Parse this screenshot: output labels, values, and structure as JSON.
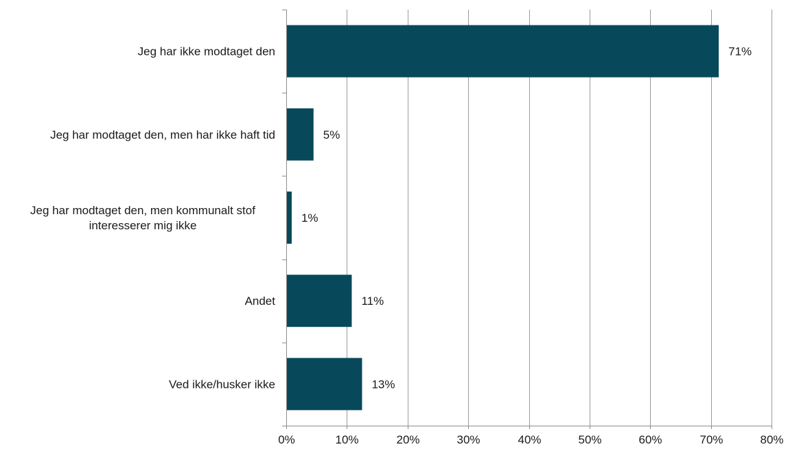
{
  "chart_data": {
    "type": "bar",
    "orientation": "horizontal",
    "categories": [
      [
        "Jeg har ikke modtaget den"
      ],
      [
        "Jeg har modtaget den, men har ikke haft tid"
      ],
      [
        "Jeg har modtaget den, men kommunalt stof",
        "interesserer mig ikke"
      ],
      [
        "Andet"
      ],
      [
        "Ved ikke/husker ikke"
      ]
    ],
    "values": [
      71.3,
      4.5,
      0.9,
      10.8,
      12.5
    ],
    "data_labels": [
      "71%",
      "5%",
      "1%",
      "11%",
      "13%"
    ],
    "x_ticks": [
      "0%",
      "10%",
      "20%",
      "30%",
      "40%",
      "50%",
      "60%",
      "70%",
      "80%"
    ],
    "xlim": [
      0,
      80
    ],
    "grid": "vertical",
    "legend": "none",
    "bar_color": "#07495a",
    "title": "",
    "xlabel": "",
    "ylabel": ""
  }
}
